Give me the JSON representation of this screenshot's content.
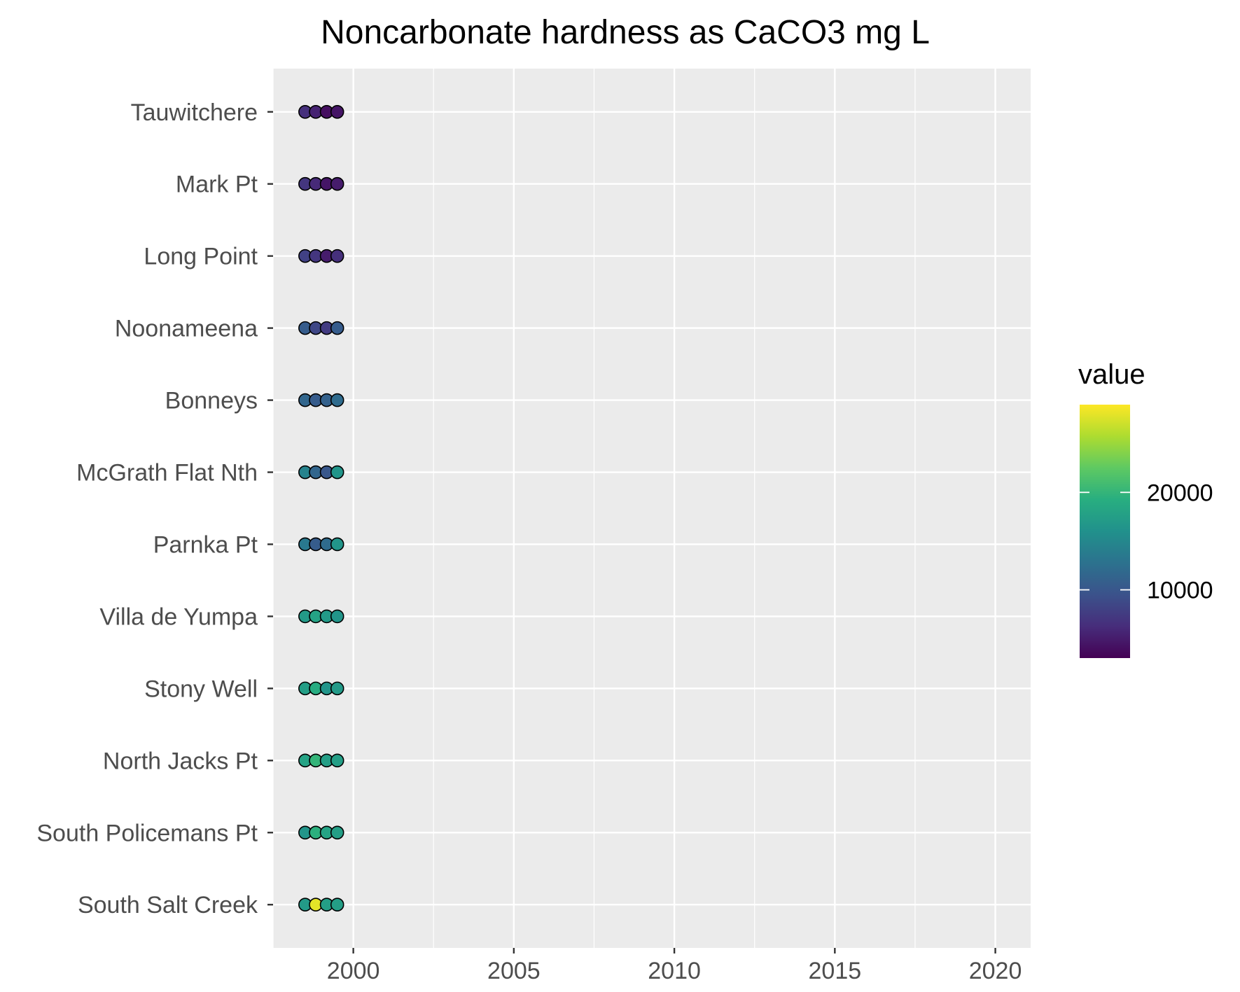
{
  "chart_data": {
    "type": "scatter",
    "title": "Noncarbonate hardness as CaCO3 mg L",
    "xlabel": "",
    "ylabel": "",
    "xlim": [
      1997.5,
      2021.1
    ],
    "x_ticks": [
      "2000",
      "2005",
      "2010",
      "2015",
      "2020"
    ],
    "x_tick_values": [
      2000,
      2005,
      2010,
      2015,
      2020
    ],
    "grid": true,
    "categories": [
      "South Salt Creek",
      "South Policemans Pt",
      "North Jacks Pt",
      "Stony Well",
      "Villa de Yumpa",
      "Parnka Pt",
      "McGrath Flat Nth",
      "Bonneys",
      "Noonameena",
      "Long Point",
      "Mark Pt",
      "Tauwitchere"
    ],
    "x": [
      1998.5,
      1998.83,
      1999.17,
      1999.5
    ],
    "series": [
      {
        "category": "South Salt Creek",
        "values": [
          17000,
          28000,
          17500,
          17500
        ]
      },
      {
        "category": "South Policemans Pt",
        "values": [
          16500,
          19500,
          18000,
          17500
        ]
      },
      {
        "category": "North Jacks Pt",
        "values": [
          18000,
          20000,
          17500,
          17500
        ]
      },
      {
        "category": "Stony Well",
        "values": [
          17500,
          19000,
          16500,
          17000
        ]
      },
      {
        "category": "Villa de Yumpa",
        "values": [
          17000,
          18000,
          17000,
          16500
        ]
      },
      {
        "category": "Parnka Pt",
        "values": [
          13500,
          10500,
          12000,
          16500
        ]
      },
      {
        "category": "McGrath Flat Nth",
        "values": [
          14500,
          11500,
          10000,
          16500
        ]
      },
      {
        "category": "Bonneys",
        "values": [
          11500,
          10500,
          11000,
          12000
        ]
      },
      {
        "category": "Noonameena",
        "values": [
          10500,
          8500,
          7500,
          10500
        ]
      },
      {
        "category": "Long Point",
        "values": [
          8000,
          7000,
          5000,
          6500
        ]
      },
      {
        "category": "Mark Pt",
        "values": [
          7000,
          6000,
          4500,
          5000
        ]
      },
      {
        "category": "Tauwitchere",
        "values": [
          6500,
          5500,
          4000,
          4500
        ]
      }
    ],
    "legend": {
      "title": "value",
      "position": "right",
      "range": [
        3000,
        29000
      ],
      "ticks": [
        "10000",
        "20000"
      ],
      "tick_values": [
        10000,
        20000
      ],
      "palette": "viridis"
    }
  }
}
